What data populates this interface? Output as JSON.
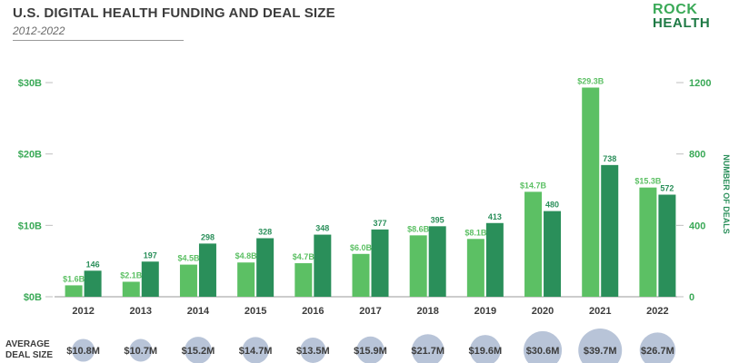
{
  "header": {
    "title": "U.S. DIGITAL HEALTH FUNDING AND DEAL SIZE",
    "subtitle": "2012-2022"
  },
  "logo": {
    "line1": "ROCK",
    "line2": "HEALTH"
  },
  "colors": {
    "funding": "#5cc064",
    "deals": "#2a8f5a",
    "axis_text": "#3aa957",
    "bubble": "#b8c4d8"
  },
  "bubble_row": {
    "label_line1": "AVERAGE",
    "label_line2": "DEAL SIZE"
  },
  "chart_data": {
    "type": "bar",
    "categories": [
      "2012",
      "2013",
      "2014",
      "2015",
      "2016",
      "2017",
      "2018",
      "2019",
      "2020",
      "2021",
      "2022"
    ],
    "series": [
      {
        "values": [
          1.6,
          2.1,
          4.5,
          4.8,
          4.7,
          6.0,
          8.6,
          8.1,
          14.7,
          29.3,
          15.3
        ],
        "labels": [
          "$1.6B",
          "$2.1B",
          "$4.5B",
          "$4.8B",
          "$4.7B",
          "$6.0B",
          "$8.6B",
          "$8.1B",
          "$14.7B",
          "$29.3B",
          "$15.3B"
        ],
        "axis": "left"
      },
      {
        "values": [
          146,
          197,
          298,
          328,
          348,
          377,
          395,
          413,
          480,
          738,
          572
        ],
        "labels": [
          "146",
          "197",
          "298",
          "328",
          "348",
          "377",
          "395",
          "413",
          "480",
          "738",
          "572"
        ],
        "axis": "right"
      }
    ],
    "y_left": {
      "ticks": [
        "$0B",
        "$10B",
        "$20B",
        "$30B"
      ],
      "range": [
        0,
        30
      ]
    },
    "y_right": {
      "label": "NUMBER OF DEALS",
      "ticks": [
        "0",
        "400",
        "800",
        "1200"
      ],
      "range": [
        0,
        1200
      ]
    },
    "average_deal_size": {
      "values": [
        10.8,
        10.7,
        15.2,
        14.7,
        13.5,
        15.9,
        21.7,
        19.6,
        30.6,
        39.7,
        26.7
      ],
      "labels": [
        "$10.8M",
        "$10.7M",
        "$15.2M",
        "$14.7M",
        "$13.5M",
        "$15.9M",
        "$21.7M",
        "$19.6M",
        "$30.6M",
        "$39.7M",
        "$26.7M"
      ]
    }
  }
}
